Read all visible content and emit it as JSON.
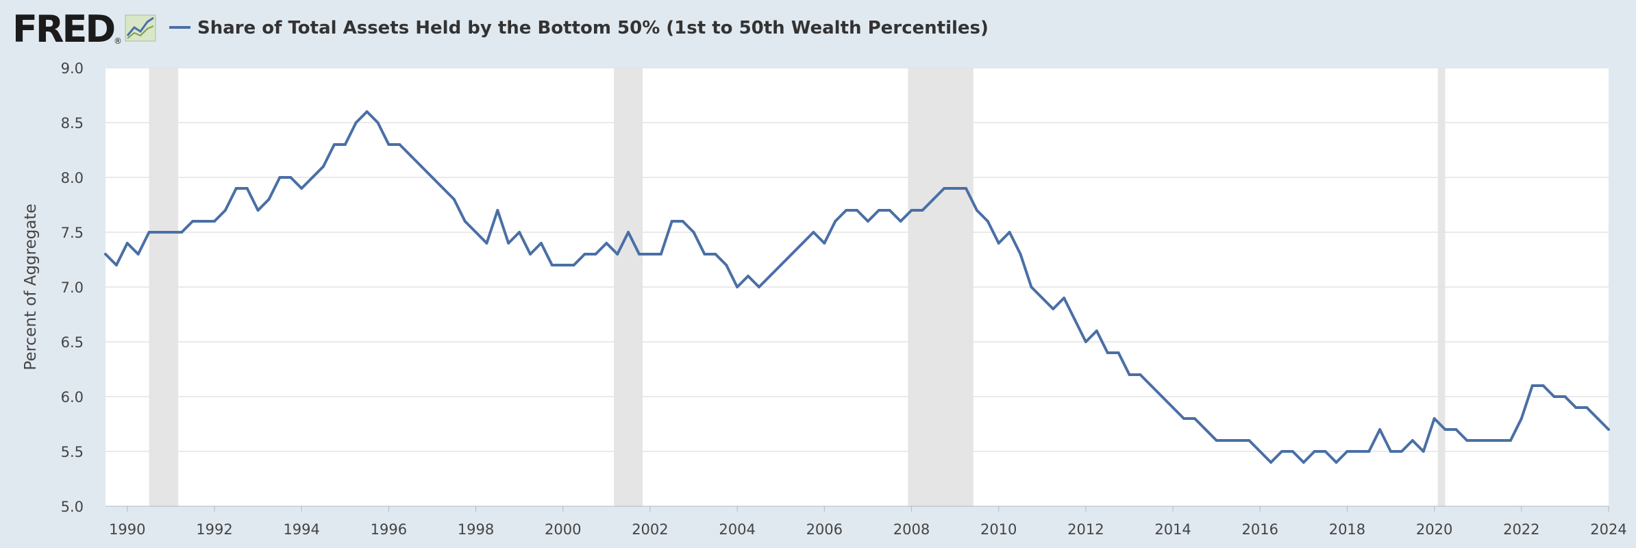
{
  "header": {
    "logo_text": "FRED",
    "logo_mark": "®",
    "logo_icon": "fred-chart-icon"
  },
  "chart_data": {
    "type": "line",
    "title": "",
    "series": [
      {
        "name": "Share of Total Assets Held by the Bottom 50% (1st to 50th Wealth Percentiles)",
        "color": "#4a6fa5"
      }
    ],
    "xlabel": "",
    "ylabel": "Percent of Aggregate",
    "xlim": [
      1989.5,
      2024.0
    ],
    "ylim": [
      5.0,
      9.0
    ],
    "x_ticks": [
      1990,
      1992,
      1994,
      1996,
      1998,
      2000,
      2002,
      2004,
      2006,
      2008,
      2010,
      2012,
      2014,
      2016,
      2018,
      2020,
      2022,
      2024
    ],
    "y_ticks": [
      "5.0",
      "5.5",
      "6.0",
      "6.5",
      "7.0",
      "7.5",
      "8.0",
      "8.5",
      "9.0"
    ],
    "grid": true,
    "legend_position": "top-left",
    "recessions": [
      [
        1990.5,
        1991.17
      ],
      [
        2001.17,
        2001.83
      ],
      [
        2007.92,
        2009.42
      ],
      [
        2020.08,
        2020.25
      ]
    ],
    "points": [
      [
        "1989Q3",
        7.3
      ],
      [
        "1989Q4",
        7.2
      ],
      [
        "1990Q1",
        7.4
      ],
      [
        "1990Q2",
        7.3
      ],
      [
        "1990Q3",
        7.5
      ],
      [
        "1990Q4",
        7.5
      ],
      [
        "1991Q1",
        7.5
      ],
      [
        "1991Q2",
        7.5
      ],
      [
        "1991Q3",
        7.6
      ],
      [
        "1991Q4",
        7.6
      ],
      [
        "1992Q1",
        7.6
      ],
      [
        "1992Q2",
        7.7
      ],
      [
        "1992Q3",
        7.9
      ],
      [
        "1992Q4",
        7.9
      ],
      [
        "1993Q1",
        7.7
      ],
      [
        "1993Q2",
        7.8
      ],
      [
        "1993Q3",
        8.0
      ],
      [
        "1993Q4",
        8.0
      ],
      [
        "1994Q1",
        7.9
      ],
      [
        "1994Q2",
        8.0
      ],
      [
        "1994Q3",
        8.1
      ],
      [
        "1994Q4",
        8.3
      ],
      [
        "1995Q1",
        8.3
      ],
      [
        "1995Q2",
        8.5
      ],
      [
        "1995Q3",
        8.6
      ],
      [
        "1995Q4",
        8.5
      ],
      [
        "1996Q1",
        8.3
      ],
      [
        "1996Q2",
        8.3
      ],
      [
        "1996Q3",
        8.2
      ],
      [
        "1996Q4",
        8.1
      ],
      [
        "1997Q1",
        8.0
      ],
      [
        "1997Q2",
        7.9
      ],
      [
        "1997Q3",
        7.8
      ],
      [
        "1997Q4",
        7.6
      ],
      [
        "1998Q1",
        7.5
      ],
      [
        "1998Q2",
        7.4
      ],
      [
        "1998Q3",
        7.7
      ],
      [
        "1998Q4",
        7.4
      ],
      [
        "1999Q1",
        7.5
      ],
      [
        "1999Q2",
        7.3
      ],
      [
        "1999Q3",
        7.4
      ],
      [
        "1999Q4",
        7.2
      ],
      [
        "2000Q1",
        7.2
      ],
      [
        "2000Q2",
        7.2
      ],
      [
        "2000Q3",
        7.3
      ],
      [
        "2000Q4",
        7.3
      ],
      [
        "2001Q1",
        7.4
      ],
      [
        "2001Q2",
        7.3
      ],
      [
        "2001Q3",
        7.5
      ],
      [
        "2001Q4",
        7.3
      ],
      [
        "2002Q1",
        7.3
      ],
      [
        "2002Q2",
        7.3
      ],
      [
        "2002Q3",
        7.6
      ],
      [
        "2002Q4",
        7.6
      ],
      [
        "2003Q1",
        7.5
      ],
      [
        "2003Q2",
        7.3
      ],
      [
        "2003Q3",
        7.3
      ],
      [
        "2003Q4",
        7.2
      ],
      [
        "2004Q1",
        7.0
      ],
      [
        "2004Q2",
        7.1
      ],
      [
        "2004Q3",
        7.0
      ],
      [
        "2004Q4",
        7.1
      ],
      [
        "2005Q1",
        7.2
      ],
      [
        "2005Q2",
        7.3
      ],
      [
        "2005Q3",
        7.4
      ],
      [
        "2005Q4",
        7.5
      ],
      [
        "2006Q1",
        7.4
      ],
      [
        "2006Q2",
        7.6
      ],
      [
        "2006Q3",
        7.7
      ],
      [
        "2006Q4",
        7.7
      ],
      [
        "2007Q1",
        7.6
      ],
      [
        "2007Q2",
        7.7
      ],
      [
        "2007Q3",
        7.7
      ],
      [
        "2007Q4",
        7.6
      ],
      [
        "2008Q1",
        7.7
      ],
      [
        "2008Q2",
        7.7
      ],
      [
        "2008Q3",
        7.8
      ],
      [
        "2008Q4",
        7.9
      ],
      [
        "2009Q1",
        7.9
      ],
      [
        "2009Q2",
        7.9
      ],
      [
        "2009Q3",
        7.7
      ],
      [
        "2009Q4",
        7.6
      ],
      [
        "2010Q1",
        7.4
      ],
      [
        "2010Q2",
        7.5
      ],
      [
        "2010Q3",
        7.3
      ],
      [
        "2010Q4",
        7.0
      ],
      [
        "2011Q1",
        6.9
      ],
      [
        "2011Q2",
        6.8
      ],
      [
        "2011Q3",
        6.9
      ],
      [
        "2011Q4",
        6.7
      ],
      [
        "2012Q1",
        6.5
      ],
      [
        "2012Q2",
        6.6
      ],
      [
        "2012Q3",
        6.4
      ],
      [
        "2012Q4",
        6.4
      ],
      [
        "2013Q1",
        6.2
      ],
      [
        "2013Q2",
        6.2
      ],
      [
        "2013Q3",
        6.1
      ],
      [
        "2013Q4",
        6.0
      ],
      [
        "2014Q1",
        5.9
      ],
      [
        "2014Q2",
        5.8
      ],
      [
        "2014Q3",
        5.8
      ],
      [
        "2014Q4",
        5.7
      ],
      [
        "2015Q1",
        5.6
      ],
      [
        "2015Q2",
        5.6
      ],
      [
        "2015Q3",
        5.6
      ],
      [
        "2015Q4",
        5.6
      ],
      [
        "2016Q1",
        5.5
      ],
      [
        "2016Q2",
        5.4
      ],
      [
        "2016Q3",
        5.5
      ],
      [
        "2016Q4",
        5.5
      ],
      [
        "2017Q1",
        5.4
      ],
      [
        "2017Q2",
        5.5
      ],
      [
        "2017Q3",
        5.5
      ],
      [
        "2017Q4",
        5.4
      ],
      [
        "2018Q1",
        5.5
      ],
      [
        "2018Q2",
        5.5
      ],
      [
        "2018Q3",
        5.5
      ],
      [
        "2018Q4",
        5.7
      ],
      [
        "2019Q1",
        5.5
      ],
      [
        "2019Q2",
        5.5
      ],
      [
        "2019Q3",
        5.6
      ],
      [
        "2019Q4",
        5.5
      ],
      [
        "2020Q1",
        5.8
      ],
      [
        "2020Q2",
        5.7
      ],
      [
        "2020Q3",
        5.7
      ],
      [
        "2020Q4",
        5.6
      ],
      [
        "2021Q1",
        5.6
      ],
      [
        "2021Q2",
        5.6
      ],
      [
        "2021Q3",
        5.6
      ],
      [
        "2021Q4",
        5.6
      ],
      [
        "2022Q1",
        5.8
      ],
      [
        "2022Q2",
        6.1
      ],
      [
        "2022Q3",
        6.1
      ],
      [
        "2022Q4",
        6.0
      ],
      [
        "2023Q1",
        6.0
      ],
      [
        "2023Q2",
        5.9
      ],
      [
        "2023Q3",
        5.9
      ],
      [
        "2023Q4",
        5.8
      ],
      [
        "2024Q1",
        5.7
      ]
    ]
  }
}
